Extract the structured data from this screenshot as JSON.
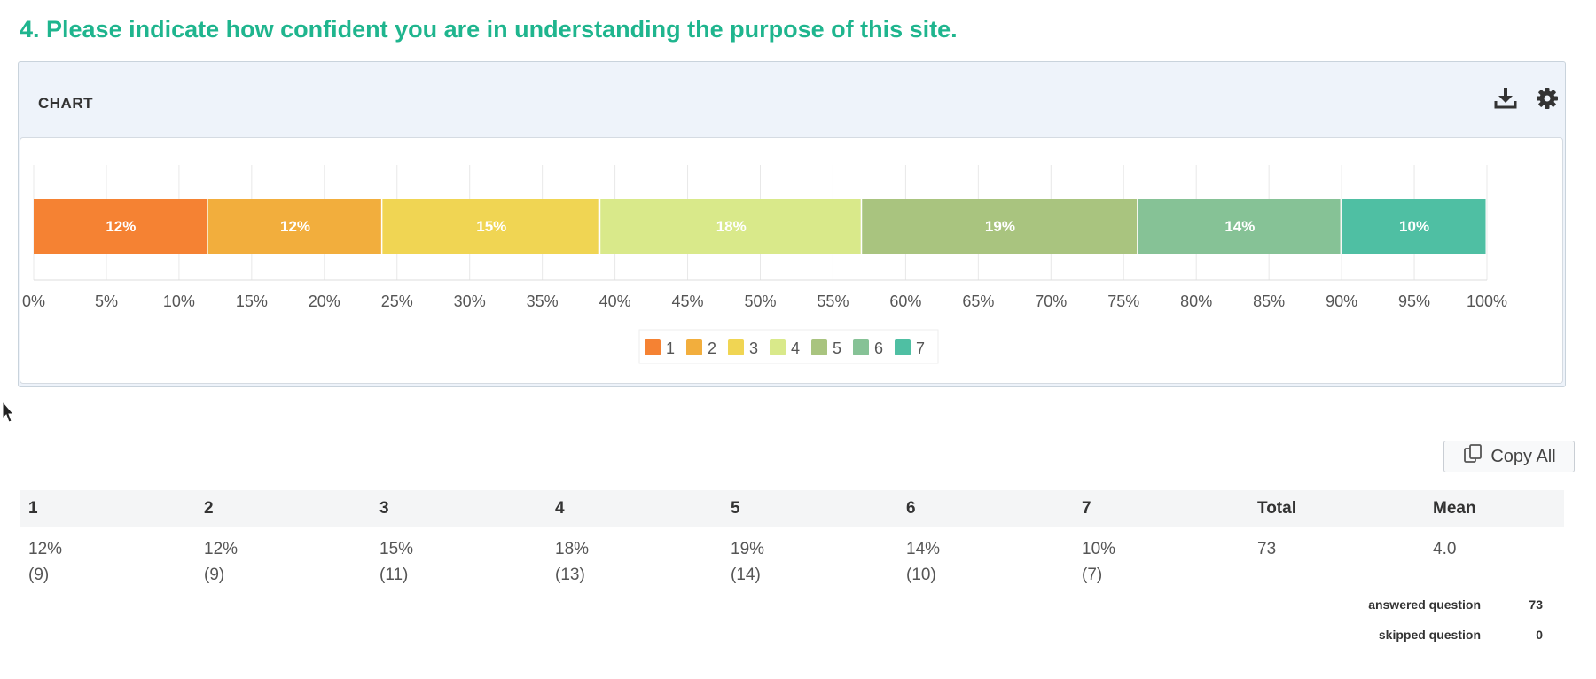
{
  "question": {
    "title": "4. Please indicate how confident you are in understanding the purpose of this site."
  },
  "chart_panel": {
    "label": "CHART",
    "icons": {
      "download": "download-icon",
      "settings": "gear-icon"
    }
  },
  "colors": {
    "title": "#1fb58e",
    "segments": [
      "#f58233",
      "#f2ae3d",
      "#f0d553",
      "#d9e98a",
      "#a9c47f",
      "#86c296",
      "#4fbfa3"
    ]
  },
  "chart_data": {
    "type": "bar",
    "orientation": "horizontal-stacked",
    "categories": [
      "1",
      "2",
      "3",
      "4",
      "5",
      "6",
      "7"
    ],
    "values": [
      12,
      12,
      15,
      18,
      19,
      14,
      10
    ],
    "data_labels": [
      "12%",
      "12%",
      "15%",
      "18%",
      "19%",
      "14%",
      "10%"
    ],
    "xlim": [
      0,
      100
    ],
    "x_ticks": [
      "0%",
      "5%",
      "10%",
      "15%",
      "20%",
      "25%",
      "30%",
      "35%",
      "40%",
      "45%",
      "50%",
      "55%",
      "60%",
      "65%",
      "70%",
      "75%",
      "80%",
      "85%",
      "90%",
      "95%",
      "100%"
    ],
    "grid": true,
    "legend": {
      "position": "bottom",
      "entries": [
        "1",
        "2",
        "3",
        "4",
        "5",
        "6",
        "7"
      ]
    }
  },
  "copy_all": {
    "label": "Copy All",
    "icon": "copy-icon"
  },
  "table": {
    "headers": [
      "1",
      "2",
      "3",
      "4",
      "5",
      "6",
      "7",
      "Total",
      "Mean"
    ],
    "row": [
      {
        "pct": "12%",
        "count": "(9)"
      },
      {
        "pct": "12%",
        "count": "(9)"
      },
      {
        "pct": "15%",
        "count": "(11)"
      },
      {
        "pct": "18%",
        "count": "(13)"
      },
      {
        "pct": "19%",
        "count": "(14)"
      },
      {
        "pct": "14%",
        "count": "(10)"
      },
      {
        "pct": "10%",
        "count": "(7)"
      }
    ],
    "total": "73",
    "mean": "4.0"
  },
  "summary": {
    "answered_label": "answered question",
    "answered_value": "73",
    "skipped_label": "skipped question",
    "skipped_value": "0"
  }
}
